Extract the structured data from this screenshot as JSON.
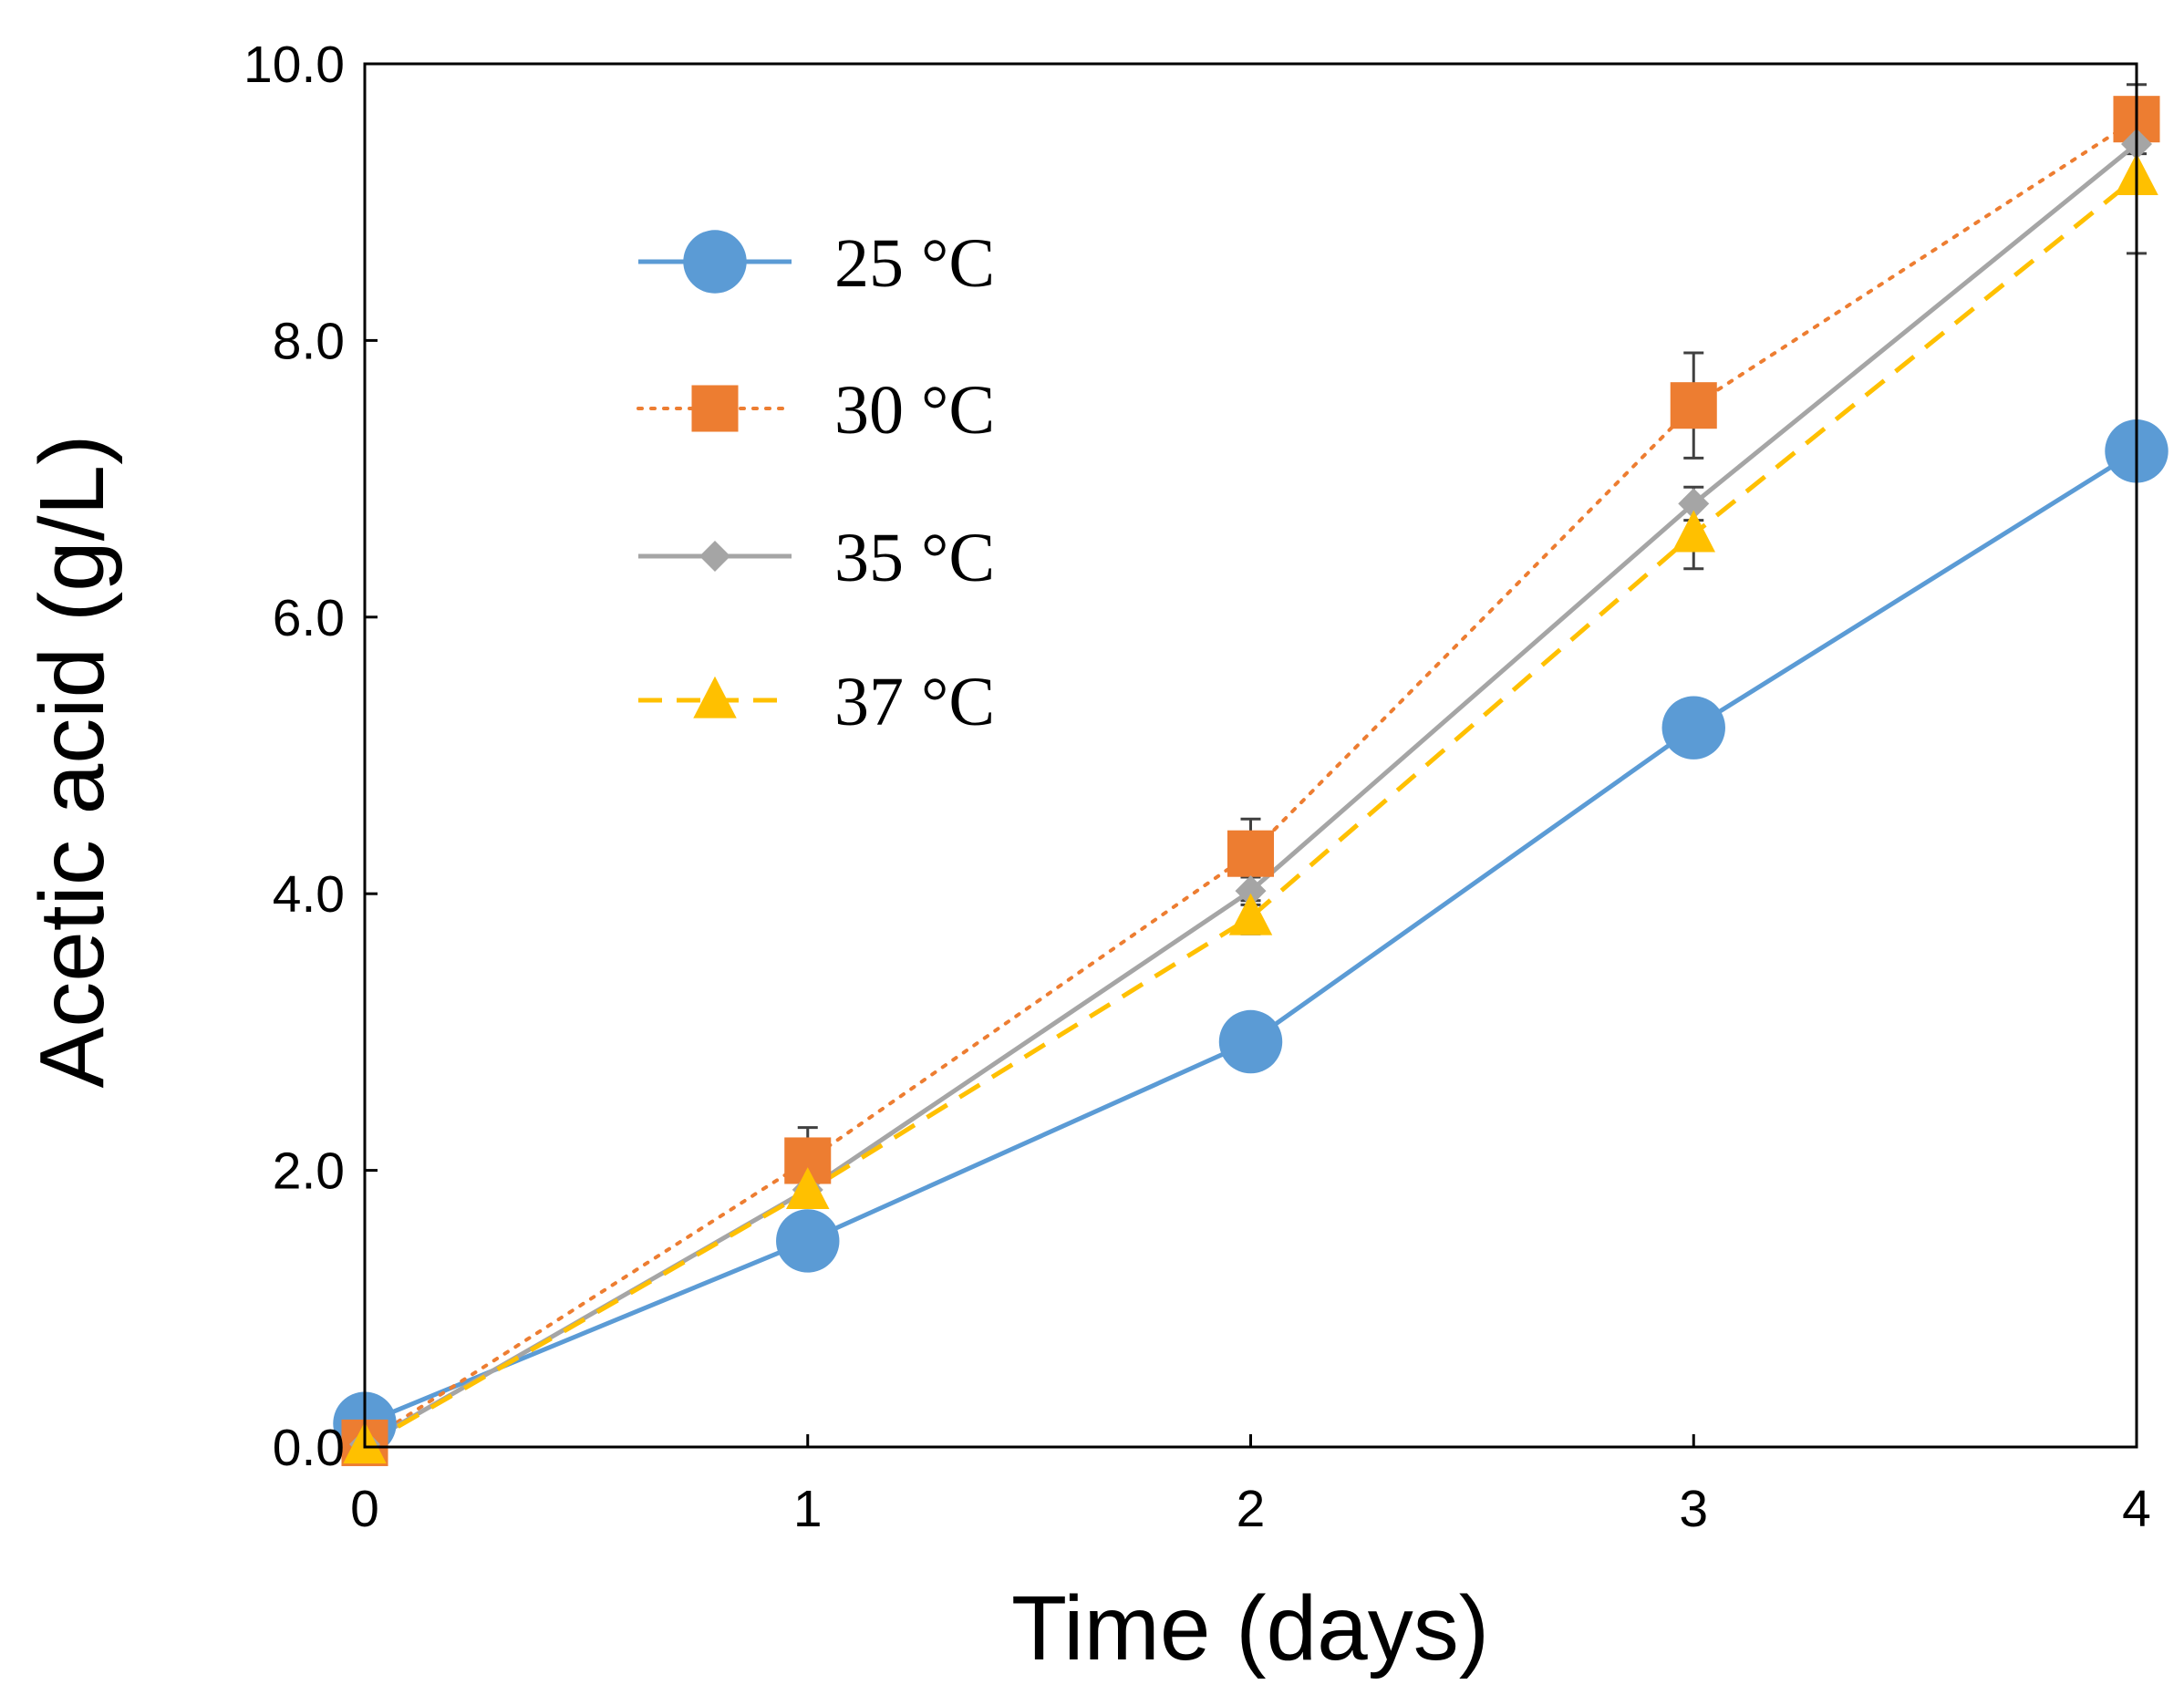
{
  "chart_data": {
    "type": "line",
    "title": "",
    "xlabel": "Time (days)",
    "ylabel": "Acetic acid (g/L)",
    "x": [
      0,
      1,
      2,
      3,
      4
    ],
    "x_tick_labels": [
      "0",
      "1",
      "2",
      "3",
      "4"
    ],
    "y_tick_labels": [
      "0.0",
      "2.0",
      "4.0",
      "6.0",
      "8.0",
      "10.0"
    ],
    "xlim": [
      0,
      4
    ],
    "ylim": [
      0,
      10
    ],
    "grid": false,
    "legend_position": "top-left",
    "series": [
      {
        "name": "25 °C",
        "color": "#5b9bd5",
        "marker": "circle",
        "line_style": "solid",
        "values": [
          0.17,
          1.49,
          2.93,
          5.2,
          7.2
        ],
        "errors": [
          0.08,
          0.05,
          0.12,
          0.1,
          0.05
        ]
      },
      {
        "name": "30 °C",
        "color": "#ed7d31",
        "marker": "square",
        "line_style": "dotted",
        "values": [
          0.03,
          2.07,
          4.29,
          7.53,
          9.6
        ],
        "errors": [
          0.05,
          0.24,
          0.25,
          0.38,
          0.25
        ]
      },
      {
        "name": "35 °C",
        "color": "#a5a5a5",
        "marker": "diamond",
        "line_style": "solid",
        "values": [
          0.02,
          1.86,
          4.02,
          6.82,
          9.42
        ],
        "errors": [
          0.03,
          0.1,
          0.1,
          0.12,
          0.3
        ]
      },
      {
        "name": "37 °C",
        "color": "#ffc000",
        "marker": "triangle",
        "line_style": "dashed",
        "values": [
          0.01,
          1.85,
          3.83,
          6.6,
          9.18
        ],
        "errors": [
          0.03,
          0.12,
          0.12,
          0.25,
          0.55
        ]
      }
    ]
  }
}
